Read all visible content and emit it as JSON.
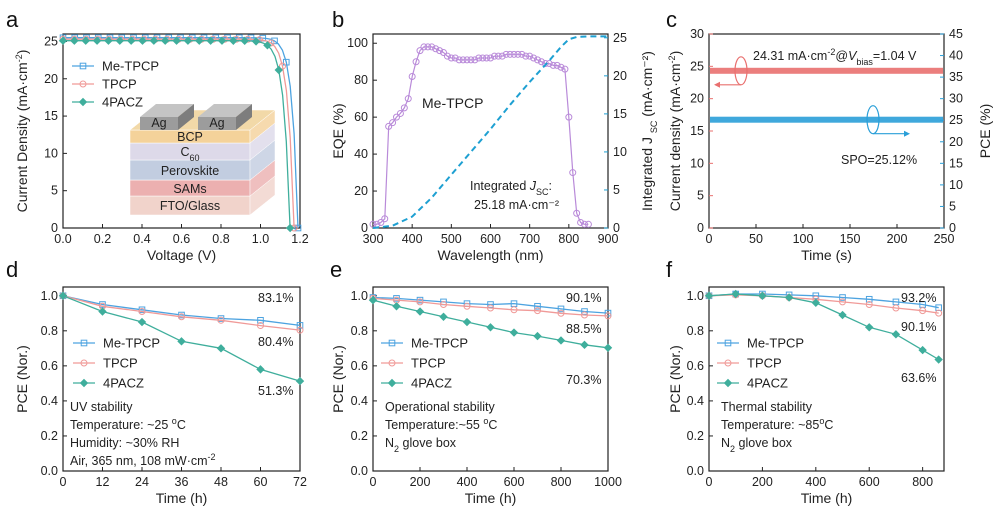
{
  "colors": {
    "me_tpcp": "#4da3e0",
    "tpcp": "#f09a98",
    "pacz": "#3fae9c",
    "eqe": "#b98ad9",
    "jsc": "#1ea0d2",
    "cd_red": "#e9706f",
    "pce_blue": "#2a9fd8"
  },
  "panel_a": {
    "letter": "a",
    "legend": [
      "Me-TPCP",
      "TPCP",
      "4PACZ"
    ],
    "device_layers": [
      "Ag",
      "Ag",
      "BCP",
      "C60",
      "Perovskite",
      "SAMs",
      "FTO/Glass"
    ],
    "chart_data": {
      "type": "line",
      "xlabel": "Voltage (V)",
      "ylabel": "Current Density (mA·cm⁻²)",
      "xlim": [
        0.0,
        1.2
      ],
      "ylim": [
        0,
        26
      ],
      "xticks": [
        "0.0",
        "0.2",
        "0.4",
        "0.6",
        "0.8",
        "1.0",
        "1.2"
      ],
      "yticks": [
        "0",
        "5",
        "10",
        "15",
        "20",
        "25"
      ],
      "series": [
        {
          "name": "Me-TPCP",
          "jsc": 25.5,
          "voc": 1.19,
          "shape": 0.029
        },
        {
          "name": "TPCP",
          "jsc": 25.3,
          "voc": 1.17,
          "shape": 0.03
        },
        {
          "name": "4PACZ",
          "jsc": 25.1,
          "voc": 1.15,
          "shape": 0.031
        }
      ]
    }
  },
  "panel_b": {
    "letter": "b",
    "label_device": "Me-TPCP",
    "label_integrated": "Integrated J",
    "label_integrated_sub": "SC",
    "label_integrated_value": "25.18 mA·cm⁻²",
    "chart_data": {
      "type": "line",
      "xlabel": "Wavelength (nm)",
      "ylabel": "EQE (%)",
      "y2label": "Integrated J",
      "y2label_sub": "SC",
      "y2label_unit": " (mA·cm⁻²)",
      "xlim": [
        300,
        900
      ],
      "ylim": [
        0,
        105
      ],
      "y2lim": [
        0,
        25.5
      ],
      "xticks": [
        "300",
        "400",
        "500",
        "600",
        "700",
        "800",
        "900"
      ],
      "yticks": [
        "0",
        "20",
        "40",
        "60",
        "80",
        "100"
      ],
      "y2ticks": [
        "0",
        "5",
        "10",
        "15",
        "20",
        "25"
      ],
      "eqe": {
        "x": [
          300,
          310,
          320,
          330,
          340,
          350,
          360,
          370,
          380,
          390,
          400,
          410,
          420,
          430,
          440,
          450,
          460,
          470,
          480,
          490,
          500,
          510,
          520,
          530,
          540,
          550,
          560,
          570,
          580,
          590,
          600,
          610,
          620,
          630,
          640,
          650,
          660,
          670,
          680,
          690,
          700,
          710,
          720,
          730,
          740,
          750,
          760,
          770,
          780,
          790,
          800,
          810,
          820,
          830,
          840,
          850
        ],
        "y": [
          2,
          2,
          3,
          5,
          55,
          57,
          60,
          62,
          65,
          70,
          82,
          90,
          96,
          98,
          98,
          98,
          97,
          96,
          95,
          93,
          92,
          92,
          91,
          91,
          91,
          91,
          91,
          92,
          92,
          92,
          92,
          93,
          93,
          93,
          94,
          94,
          94,
          94,
          94,
          93,
          93,
          92,
          91,
          90,
          89,
          89,
          88,
          88,
          87,
          86,
          60,
          30,
          8,
          3,
          2,
          2
        ]
      },
      "jsc": {
        "x": [
          300,
          350,
          400,
          450,
          500,
          550,
          600,
          650,
          700,
          750,
          780,
          800,
          820,
          850,
          900
        ],
        "y": [
          0,
          0.3,
          1.5,
          4,
          7,
          10,
          13,
          16.2,
          19.2,
          22,
          23.8,
          24.8,
          25.1,
          25.18,
          25.18
        ]
      }
    }
  },
  "panel_c": {
    "letter": "c",
    "annotation_main": "24.31 mA·cm⁻²@V",
    "annotation_sub": "bias",
    "annotation_end": "=1.04 V",
    "annotation_spo": "SPO=25.12%",
    "chart_data": {
      "type": "line",
      "xlabel": "Time (s)",
      "ylabel": "Current density (mA·cm⁻²)",
      "y2label": "PCE (%)",
      "xlim": [
        0,
        250
      ],
      "ylim": [
        0,
        30
      ],
      "y2lim": [
        0,
        45
      ],
      "xticks": [
        "0",
        "50",
        "100",
        "150",
        "200",
        "250"
      ],
      "yticks": [
        "0",
        "5",
        "10",
        "15",
        "20",
        "25",
        "30"
      ],
      "y2ticks": [
        "0",
        "5",
        "10",
        "15",
        "20",
        "25",
        "30",
        "35",
        "40",
        "45"
      ],
      "series": [
        {
          "name": "Current density",
          "axis": "left",
          "value": 24.31
        },
        {
          "name": "PCE",
          "axis": "right",
          "value": 25.12
        }
      ]
    }
  },
  "panel_d": {
    "letter": "d",
    "legend": [
      "Me-TPCP",
      "TPCP",
      "4PACZ"
    ],
    "end_labels": [
      "83.1%",
      "80.4%",
      "51.3%"
    ],
    "notes": [
      "UV stability",
      "Temperature: ~25 °C",
      "Humidity: ~30% RH",
      "Air, 365 nm, 108 mW·cm⁻²"
    ],
    "chart_data": {
      "type": "line",
      "xlabel": "Time (h)",
      "ylabel": "PCE (Nor.)",
      "xlim": [
        0,
        72
      ],
      "ylim": [
        0,
        1.05
      ],
      "xticks": [
        "0",
        "12",
        "24",
        "36",
        "48",
        "60",
        "72"
      ],
      "yticks": [
        "0.0",
        "0.2",
        "0.4",
        "0.6",
        "0.8",
        "1.0"
      ],
      "x": [
        0,
        12,
        24,
        36,
        48,
        60,
        72
      ],
      "series": [
        {
          "name": "Me-TPCP",
          "values": [
            1.0,
            0.95,
            0.92,
            0.89,
            0.87,
            0.86,
            0.831
          ]
        },
        {
          "name": "TPCP",
          "values": [
            1.0,
            0.94,
            0.91,
            0.88,
            0.86,
            0.83,
            0.804
          ]
        },
        {
          "name": "4PACZ",
          "values": [
            1.0,
            0.91,
            0.85,
            0.74,
            0.7,
            0.58,
            0.513
          ]
        }
      ]
    }
  },
  "panel_e": {
    "letter": "e",
    "legend": [
      "Me-TPCP",
      "TPCP",
      "4PACZ"
    ],
    "end_labels": [
      "90.1%",
      "88.5%",
      "70.3%"
    ],
    "notes": [
      "Operational stability",
      "Temperature:~55 °C",
      "N2 glove box"
    ],
    "chart_data": {
      "type": "line",
      "xlabel": "Time (h)",
      "ylabel": "PCE (Nor.)",
      "xlim": [
        0,
        1000
      ],
      "ylim": [
        0,
        1.05
      ],
      "xticks": [
        "0",
        "200",
        "400",
        "600",
        "800",
        "1000"
      ],
      "yticks": [
        "0.0",
        "0.2",
        "0.4",
        "0.6",
        "0.8",
        "1.0"
      ],
      "series": [
        {
          "name": "Me-TPCP",
          "x": [
            0,
            100,
            200,
            300,
            400,
            500,
            600,
            700,
            800,
            900,
            1000
          ],
          "values": [
            0.99,
            0.985,
            0.975,
            0.965,
            0.955,
            0.95,
            0.955,
            0.94,
            0.925,
            0.91,
            0.901
          ]
        },
        {
          "name": "TPCP",
          "x": [
            0,
            100,
            200,
            300,
            400,
            500,
            600,
            700,
            800,
            900,
            1000
          ],
          "values": [
            0.985,
            0.975,
            0.965,
            0.95,
            0.94,
            0.93,
            0.92,
            0.915,
            0.9,
            0.89,
            0.885
          ]
        },
        {
          "name": "4PACZ",
          "x": [
            0,
            100,
            200,
            300,
            400,
            500,
            600,
            700,
            800,
            900,
            1000
          ],
          "values": [
            0.975,
            0.94,
            0.91,
            0.88,
            0.85,
            0.82,
            0.79,
            0.77,
            0.745,
            0.72,
            0.703
          ]
        }
      ]
    }
  },
  "panel_f": {
    "letter": "f",
    "legend": [
      "Me-TPCP",
      "TPCP",
      "4PACZ"
    ],
    "end_labels": [
      "93.2%",
      "90.1%",
      "63.6%"
    ],
    "notes": [
      "Thermal stability",
      "Temperature: ~85°C",
      "N2 glove box"
    ],
    "chart_data": {
      "type": "line",
      "xlabel": "Time (h)",
      "ylabel": "PCE (Nor.)",
      "xlim": [
        0,
        880
      ],
      "ylim": [
        0,
        1.05
      ],
      "xticks": [
        "0",
        "200",
        "400",
        "600",
        "800"
      ],
      "yticks": [
        "0.0",
        "0.2",
        "0.4",
        "0.6",
        "0.8",
        "1.0"
      ],
      "series": [
        {
          "name": "Me-TPCP",
          "x": [
            0,
            100,
            200,
            300,
            400,
            500,
            600,
            700,
            800,
            860
          ],
          "values": [
            1.0,
            1.01,
            1.01,
            1.005,
            1.0,
            0.99,
            0.98,
            0.965,
            0.95,
            0.932
          ]
        },
        {
          "name": "TPCP",
          "x": [
            0,
            100,
            200,
            300,
            400,
            500,
            600,
            700,
            800,
            860
          ],
          "values": [
            1.0,
            1.005,
            1.0,
            0.99,
            0.98,
            0.965,
            0.95,
            0.93,
            0.915,
            0.901
          ]
        },
        {
          "name": "4PACZ",
          "x": [
            0,
            100,
            200,
            300,
            400,
            500,
            600,
            700,
            800,
            860
          ],
          "values": [
            1.0,
            1.01,
            1.0,
            0.99,
            0.96,
            0.89,
            0.82,
            0.78,
            0.69,
            0.636
          ]
        }
      ]
    }
  }
}
